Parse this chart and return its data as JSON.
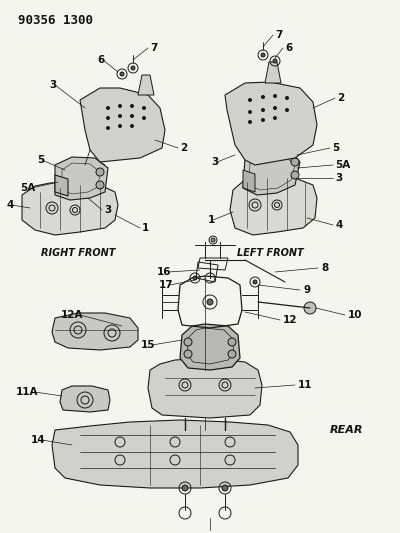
{
  "title": "90356 1300",
  "bg_color": "#f5f5f0",
  "line_color": "#1a1a1a",
  "label_color": "#111111",
  "title_fontsize": 9,
  "label_fontsize": 7.5,
  "caption_fontsize": 7,
  "right_front_label": "RIGHT FRONT",
  "left_front_label": "LEFT FRONT",
  "rear_label": "REAR",
  "fig_width": 4.0,
  "fig_height": 5.33,
  "dpi": 100
}
